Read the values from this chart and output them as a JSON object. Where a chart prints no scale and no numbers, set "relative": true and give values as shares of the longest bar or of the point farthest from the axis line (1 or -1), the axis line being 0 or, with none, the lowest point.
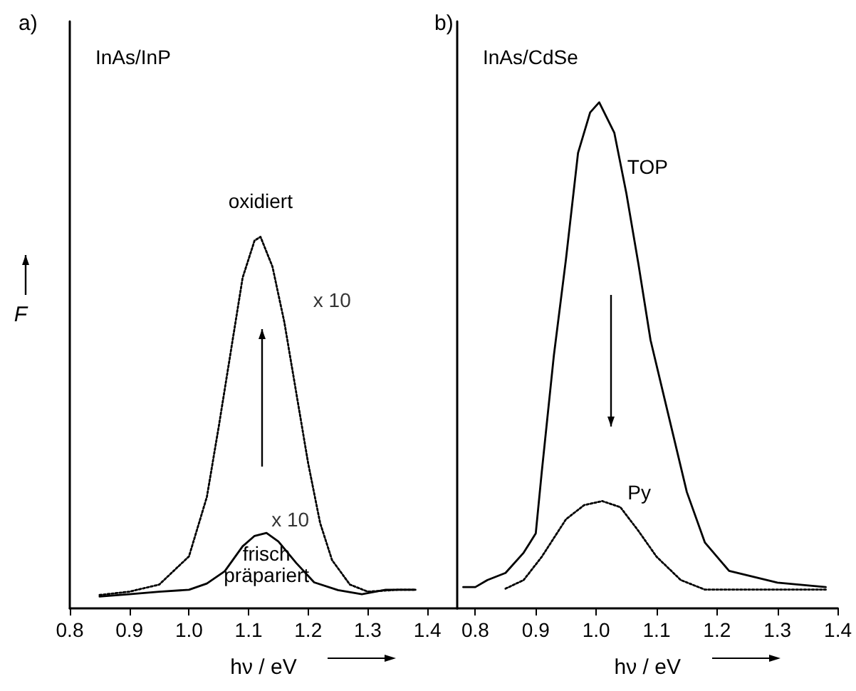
{
  "chart_data": [
    {
      "type": "line",
      "title": "a)",
      "subtitle": "InAs/InP",
      "xlabel": "hν / eV",
      "ylabel": "F",
      "relative": true,
      "xlim": [
        0.8,
        1.45
      ],
      "xticks": [
        0.8,
        0.9,
        {
          "value": 1,
          "label": "1.0"
        },
        1.1,
        1.2,
        1.3,
        1.4
      ],
      "annotations": [
        "x 10",
        "x 10"
      ],
      "series": [
        {
          "name": "oxidiert",
          "color": "#000000",
          "line_style": "dotted",
          "x": [
            0.85,
            0.9,
            0.95,
            1.0,
            1.03,
            1.05,
            1.07,
            1.09,
            1.11,
            1.12,
            1.14,
            1.16,
            1.18,
            1.2,
            1.22,
            1.24,
            1.27,
            1.3,
            1.35,
            1.38
          ],
          "values": [
            0.036,
            0.045,
            0.064,
            0.14,
            0.3,
            0.49,
            0.69,
            0.89,
            0.99,
            1.0,
            0.92,
            0.77,
            0.58,
            0.39,
            0.23,
            0.13,
            0.064,
            0.045,
            0.05,
            0.05
          ]
        },
        {
          "name": "frisch präpariert",
          "color": "#000000",
          "line_style": "solid",
          "x": [
            0.85,
            0.9,
            0.95,
            1.0,
            1.03,
            1.06,
            1.09,
            1.11,
            1.13,
            1.15,
            1.18,
            1.21,
            1.25,
            1.29,
            1.33,
            1.38
          ],
          "values": [
            0.032,
            0.038,
            0.045,
            0.05,
            0.067,
            0.1,
            0.167,
            0.195,
            0.203,
            0.18,
            0.122,
            0.07,
            0.049,
            0.038,
            0.05,
            0.05
          ]
        }
      ]
    },
    {
      "type": "line",
      "title": "b)",
      "subtitle": "InAs/CdSe",
      "xlabel": "hν / eV",
      "relative": true,
      "xlim": [
        0.77,
        1.4
      ],
      "xticks": [
        0.8,
        0.9,
        {
          "value": 1,
          "label": "1.0"
        },
        1.1,
        1.2,
        1.3,
        1.4
      ],
      "series": [
        {
          "name": "TOP",
          "color": "#000000",
          "line_style": "solid",
          "x": [
            0.78,
            0.8,
            0.82,
            0.85,
            0.88,
            0.9,
            0.91,
            0.93,
            0.95,
            0.97,
            0.99,
            1.005,
            1.03,
            1.05,
            1.07,
            1.09,
            1.11,
            1.13,
            1.15,
            1.18,
            1.22,
            1.3,
            1.38
          ],
          "values": [
            0.042,
            0.042,
            0.056,
            0.07,
            0.11,
            0.148,
            0.27,
            0.5,
            0.69,
            0.9,
            0.98,
            1.0,
            0.94,
            0.82,
            0.68,
            0.53,
            0.43,
            0.33,
            0.23,
            0.13,
            0.074,
            0.051,
            0.042
          ]
        },
        {
          "name": "Py",
          "color": "#000000",
          "line_style": "dotted",
          "x": [
            0.85,
            0.88,
            0.91,
            0.95,
            0.98,
            1.01,
            1.04,
            1.07,
            1.1,
            1.14,
            1.18,
            1.25,
            1.38
          ],
          "values": [
            0.039,
            0.056,
            0.102,
            0.176,
            0.204,
            0.212,
            0.2,
            0.153,
            0.102,
            0.056,
            0.037,
            0.037,
            0.037
          ]
        }
      ]
    }
  ]
}
